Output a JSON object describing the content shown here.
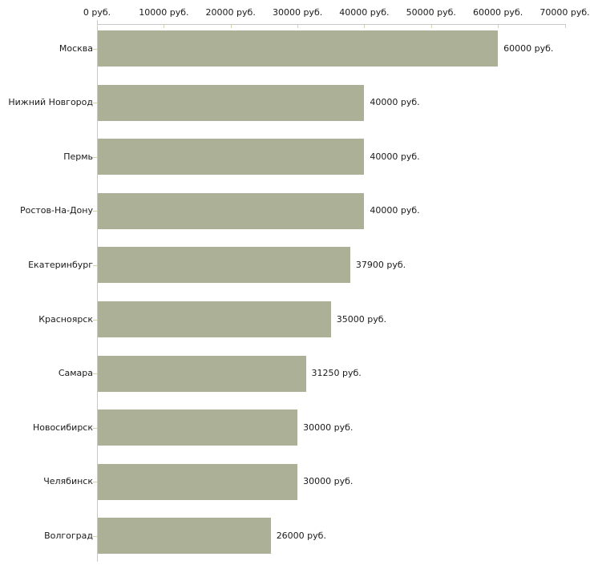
{
  "chart_data": {
    "type": "bar",
    "orientation": "horizontal",
    "title": "",
    "xlabel": "",
    "ylabel": "",
    "xlim": [
      0,
      70000
    ],
    "x_tick_step": 10000,
    "x_tick_labels": [
      "0 руб.",
      "10000 руб.",
      "20000 руб.",
      "30000 руб.",
      "40000 руб.",
      "50000 руб.",
      "60000 руб.",
      "70000 руб."
    ],
    "categories": [
      "Москва",
      "Нижний Новгород",
      "Пермь",
      "Ростов-На-Дону",
      "Екатеринбург",
      "Красноярск",
      "Самара",
      "Новосибирск",
      "Челябинск",
      "Волгоград"
    ],
    "values": [
      60000,
      40000,
      40000,
      40000,
      37900,
      35000,
      31250,
      30000,
      30000,
      26000
    ],
    "value_labels": [
      "60000 руб.",
      "40000 руб.",
      "40000 руб.",
      "40000 руб.",
      "37900 руб.",
      "35000 руб.",
      "31250 руб.",
      "30000 руб.",
      "30000 руб.",
      "26000 руб."
    ],
    "unit_suffix": "руб.",
    "grid": false,
    "legend": false,
    "colors": {
      "bar": "#abb096",
      "axis_line": "#c8c8c8",
      "tick": "#d2d2aa",
      "text": "#1a1a1a",
      "background": "#ffffff"
    }
  }
}
